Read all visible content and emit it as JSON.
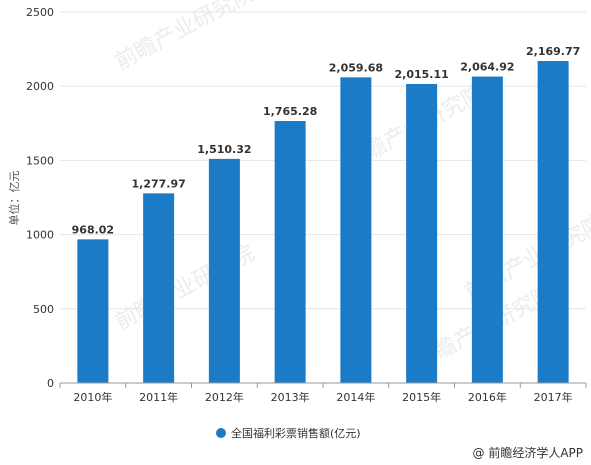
{
  "chart_data": {
    "type": "bar",
    "categories": [
      "2010年",
      "2011年",
      "2012年",
      "2013年",
      "2014年",
      "2015年",
      "2016年",
      "2017年"
    ],
    "series": [
      {
        "name": "全国福利彩票销售额(亿元)",
        "values": [
          968.02,
          1277.97,
          1510.32,
          1765.28,
          2059.68,
          2015.11,
          2064.92,
          2169.77
        ],
        "data_labels": [
          "968.02",
          "1,277.97",
          "1,510.32",
          "1,765.28",
          "2,059.68",
          "2,015.11",
          "2,064.92",
          "2,169.77"
        ],
        "color": "#1c7bc7"
      }
    ],
    "ylabel": "单位：亿元",
    "ylim": [
      0,
      2500
    ],
    "yticks": [
      0,
      500,
      1000,
      1500,
      2000,
      2500
    ],
    "grid": true,
    "legend_position": "bottom-center"
  },
  "source_credit": "@ 前瞻经济学人APP",
  "watermark_text": "前瞻产业研究院",
  "colors": {
    "bar": "#1c7bc7",
    "grid": "#e6e6e6",
    "text": "#333333"
  }
}
